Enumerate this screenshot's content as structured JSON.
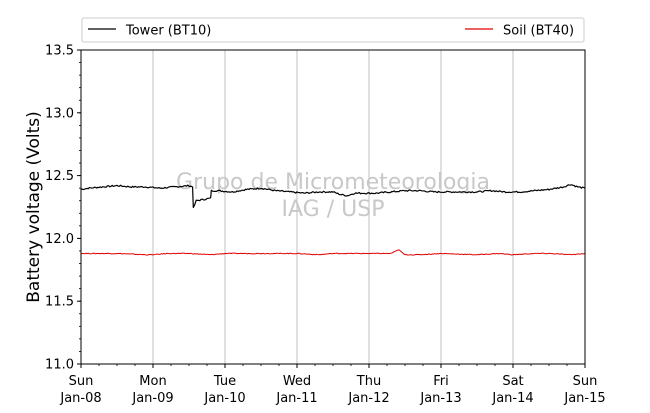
{
  "chart_data": {
    "type": "line",
    "ylabel": "Battery voltage (Volts)",
    "ylim": [
      11.0,
      13.5
    ],
    "yticks": [
      "11.0",
      "11.5",
      "12.0",
      "12.5",
      "13.0",
      "13.5"
    ],
    "xlim": [
      0,
      7
    ],
    "xticks": [
      {
        "day": "Sun",
        "date": "Jan-08"
      },
      {
        "day": "Mon",
        "date": "Jan-09"
      },
      {
        "day": "Tue",
        "date": "Jan-10"
      },
      {
        "day": "Wed",
        "date": "Jan-11"
      },
      {
        "day": "Thu",
        "date": "Jan-12"
      },
      {
        "day": "Fri",
        "date": "Jan-13"
      },
      {
        "day": "Sat",
        "date": "Jan-14"
      },
      {
        "day": "Sun",
        "date": "Jan-15"
      }
    ],
    "grid": "vertical",
    "legend": "top",
    "watermark": [
      "Grupo de Micrometeorologia",
      "IAG / USP"
    ],
    "series": [
      {
        "name": "Tower (BT10)",
        "color": "#000000",
        "x": [
          0,
          0.1,
          0.3,
          0.5,
          0.7,
          0.9,
          1.1,
          1.3,
          1.5,
          1.55,
          1.56,
          1.6,
          1.7,
          1.8,
          1.81,
          1.9,
          2.1,
          2.3,
          2.5,
          2.7,
          2.9,
          3.1,
          3.3,
          3.5,
          3.6,
          3.7,
          3.8,
          3.9,
          4.1,
          4.3,
          4.5,
          4.7,
          4.9,
          5.1,
          5.3,
          5.5,
          5.7,
          5.9,
          6.1,
          6.3,
          6.5,
          6.7,
          6.8,
          6.9,
          7.0
        ],
        "y": [
          12.39,
          12.4,
          12.41,
          12.42,
          12.41,
          12.41,
          12.4,
          12.41,
          12.42,
          12.41,
          12.24,
          12.3,
          12.31,
          12.32,
          12.38,
          12.38,
          12.37,
          12.39,
          12.4,
          12.38,
          12.37,
          12.36,
          12.37,
          12.37,
          12.35,
          12.34,
          12.36,
          12.36,
          12.36,
          12.37,
          12.38,
          12.38,
          12.37,
          12.37,
          12.37,
          12.37,
          12.38,
          12.37,
          12.37,
          12.38,
          12.39,
          12.41,
          12.43,
          12.41,
          12.4
        ]
      },
      {
        "name": "Soil (BT40)",
        "color": "#e00000",
        "x": [
          0,
          0.5,
          0.9,
          1.0,
          1.2,
          1.5,
          1.8,
          2.0,
          2.5,
          3.0,
          3.3,
          3.5,
          4.0,
          4.3,
          4.42,
          4.45,
          4.5,
          4.7,
          5.0,
          5.5,
          5.8,
          6.0,
          6.3,
          6.5,
          6.8,
          7.0
        ],
        "y": [
          11.88,
          11.88,
          11.87,
          11.87,
          11.88,
          11.88,
          11.87,
          11.88,
          11.88,
          11.88,
          11.87,
          11.88,
          11.88,
          11.88,
          11.91,
          11.89,
          11.87,
          11.87,
          11.88,
          11.87,
          11.88,
          11.87,
          11.88,
          11.88,
          11.87,
          11.88
        ]
      }
    ]
  }
}
